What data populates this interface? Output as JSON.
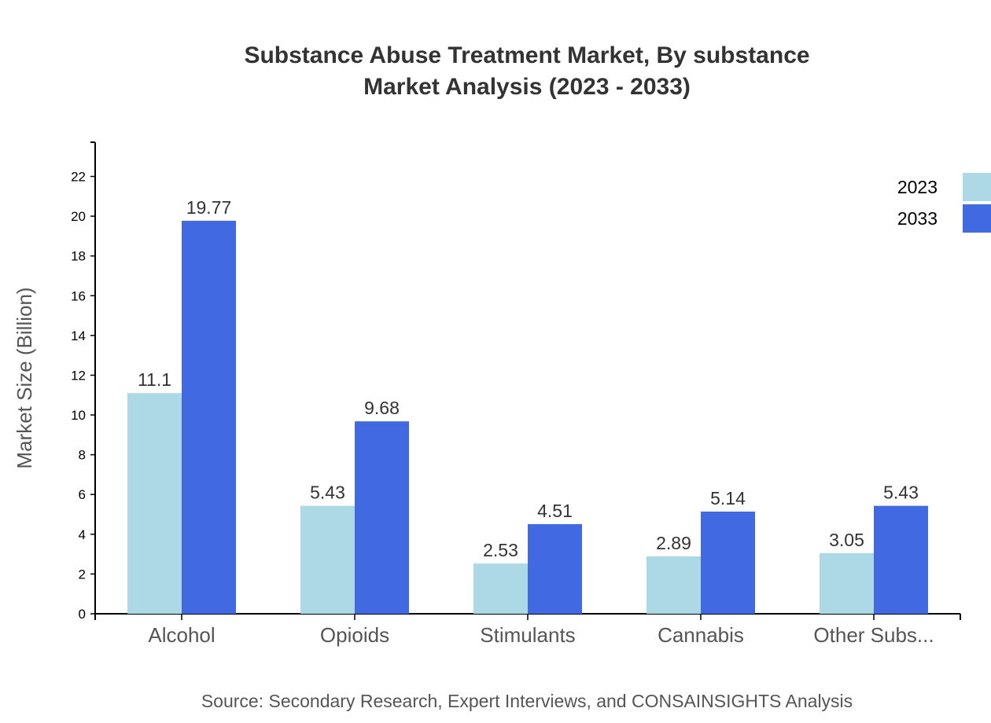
{
  "chart_data": {
    "type": "bar",
    "title": "Substance Abuse Treatment Market, By substance",
    "subtitle": "Market Analysis (2023 - 2033)",
    "xlabel": "",
    "ylabel": "Market Size (Billion)",
    "categories": [
      "Alcohol",
      "Opioids",
      "Stimulants",
      "Cannabis",
      "Other Subs..."
    ],
    "series": [
      {
        "name": "2023",
        "color": "#add8e6",
        "values": [
          11.1,
          5.43,
          2.53,
          2.89,
          3.05
        ]
      },
      {
        "name": "2033",
        "color": "#4169e1",
        "values": [
          19.77,
          9.68,
          4.51,
          5.14,
          5.43
        ]
      }
    ],
    "ylim": [
      0,
      23.72
    ],
    "yticks": [
      0,
      2,
      4,
      6,
      8,
      10,
      12,
      14,
      16,
      18,
      20,
      22
    ],
    "grid": false,
    "legend": "top-right",
    "source": "Source: Secondary Research, Expert Interviews, and CONSAINSIGHTS Analysis"
  }
}
